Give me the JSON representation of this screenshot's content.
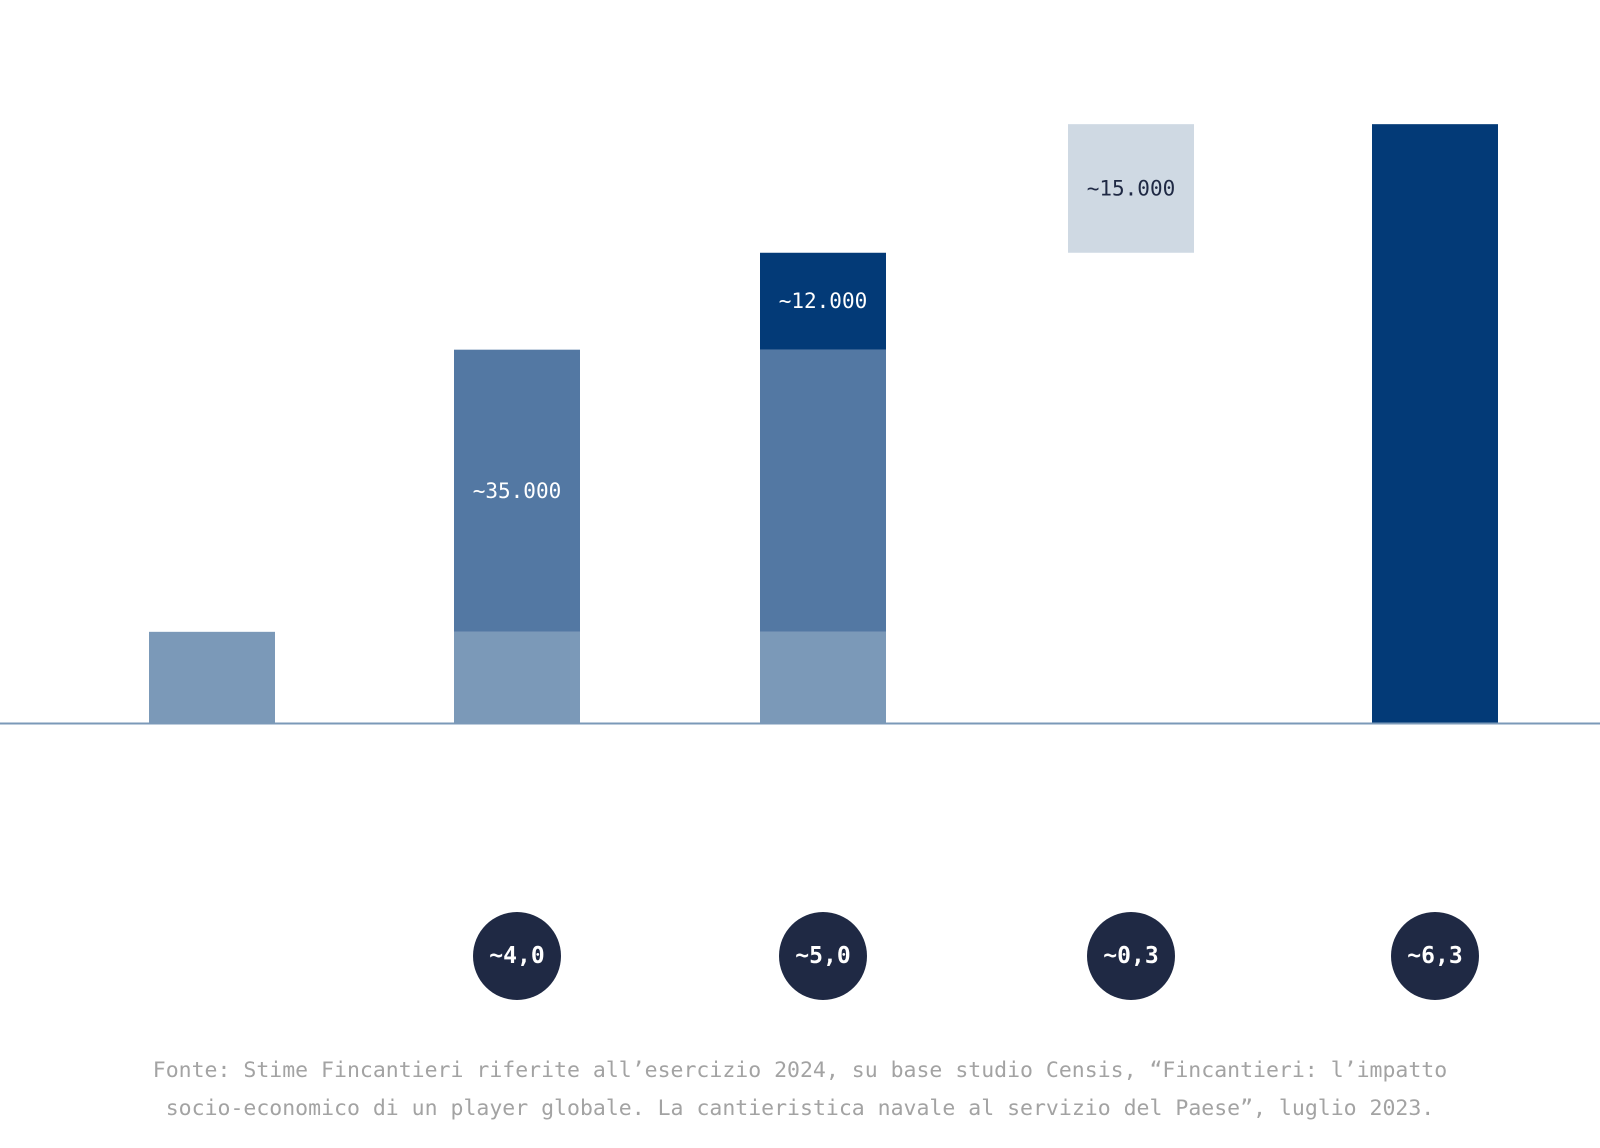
{
  "chart_data": {
    "type": "bar",
    "stacked": true,
    "categories": [
      "",
      "",
      "",
      "",
      ""
    ],
    "ylim": [
      0,
      62000
    ],
    "grid": false,
    "legend": "none",
    "columns": [
      {
        "segments": [
          {
            "base": 0,
            "value": 9500,
            "color": "#7b99b8",
            "label": ""
          }
        ],
        "badge": ""
      },
      {
        "segments": [
          {
            "base": 0,
            "value": 9500,
            "color": "#7b99b8",
            "label": ""
          },
          {
            "base": 9500,
            "value": 29400,
            "color": "#5378a3",
            "label": "~35.000"
          }
        ],
        "badge": "~4,0"
      },
      {
        "segments": [
          {
            "base": 0,
            "value": 9500,
            "color": "#7b99b8",
            "label": ""
          },
          {
            "base": 9500,
            "value": 29400,
            "color": "#5378a3",
            "label": ""
          },
          {
            "base": 38900,
            "value": 10100,
            "color": "#033a77",
            "label": "~12.000"
          }
        ],
        "badge": "~5,0"
      },
      {
        "segments": [
          {
            "base": 49000,
            "value": 13400,
            "color": "#cfd9e3",
            "label": "~15.000"
          }
        ],
        "badge": "~0,3"
      },
      {
        "segments": [
          {
            "base": 0,
            "value": 62400,
            "color": "#033a77",
            "label": ""
          }
        ],
        "badge": "~6,3"
      }
    ],
    "source_lines": [
      "Fonte: Stime Fincantieri riferite all’esercizio 2024, su base studio Censis, “Fincantieri: l’impatto",
      "socio-economico di un player globale. La cantieristica navale al servizio del Paese”, luglio 2023."
    ]
  },
  "colors": {
    "baseline": "#7b99b8",
    "badge_fill": "#1f2944",
    "badge_text": "#ffffff",
    "label_on_dark": "#ffffff",
    "label_on_light": "#1f2944",
    "source_text": "#a3a3a3"
  }
}
